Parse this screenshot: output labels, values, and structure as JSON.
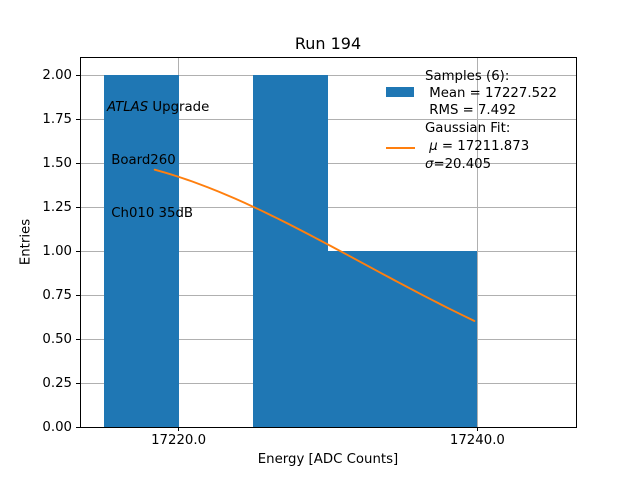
{
  "title": "Run 194",
  "annotation": {
    "atlas": "ATLAS",
    "upgrade_suffix": " Upgrade",
    "line2": " Board260",
    "line3": " Ch010 35dB"
  },
  "legend": {
    "samples_header": "Samples (6):",
    "mean_label": " Mean = 17227.522",
    "rms_label": " RMS = 7.492",
    "fit_header": "Gaussian Fit:",
    "mu_symbol": " μ",
    "mu_rest": " = 17211.873",
    "sigma_symbol": "σ",
    "sigma_rest": "=20.405"
  },
  "chart_data": {
    "type": "bar",
    "subtype": "histogram-with-gaussian-fit",
    "title": "Run 194",
    "xlabel": "Energy [ADC Counts]",
    "ylabel": "Entries",
    "bin_edges": [
      17215,
      17220,
      17225,
      17230,
      17235,
      17240
    ],
    "counts": [
      2,
      0,
      2,
      1,
      1
    ],
    "n_samples": 6,
    "mean": 17227.522,
    "rms": 7.492,
    "fit": {
      "type": "gaussian",
      "mu": 17211.873,
      "sigma": 20.405,
      "amplitude": 1.54,
      "x_start": 17218.4,
      "x_end": 17239.8
    },
    "xlim": [
      17213.4,
      17246.6
    ],
    "ylim": [
      0,
      2.1
    ],
    "xticks": {
      "values": [
        17220,
        17240
      ],
      "labels": [
        "17220.0",
        "17240.0"
      ]
    },
    "yticks": {
      "values": [
        0,
        0.25,
        0.5,
        0.75,
        1.0,
        1.25,
        1.5,
        1.75,
        2.0
      ],
      "labels": [
        "0.00",
        "0.25",
        "0.50",
        "0.75",
        "1.00",
        "1.25",
        "1.50",
        "1.75",
        "2.00"
      ]
    },
    "grid": true,
    "legend_position": "upper right",
    "legend_frame": false,
    "colors": {
      "bar": "#1f77b4",
      "fit_line": "#ff7f0e",
      "grid": "#b0b0b0",
      "axes": "#000000"
    }
  }
}
